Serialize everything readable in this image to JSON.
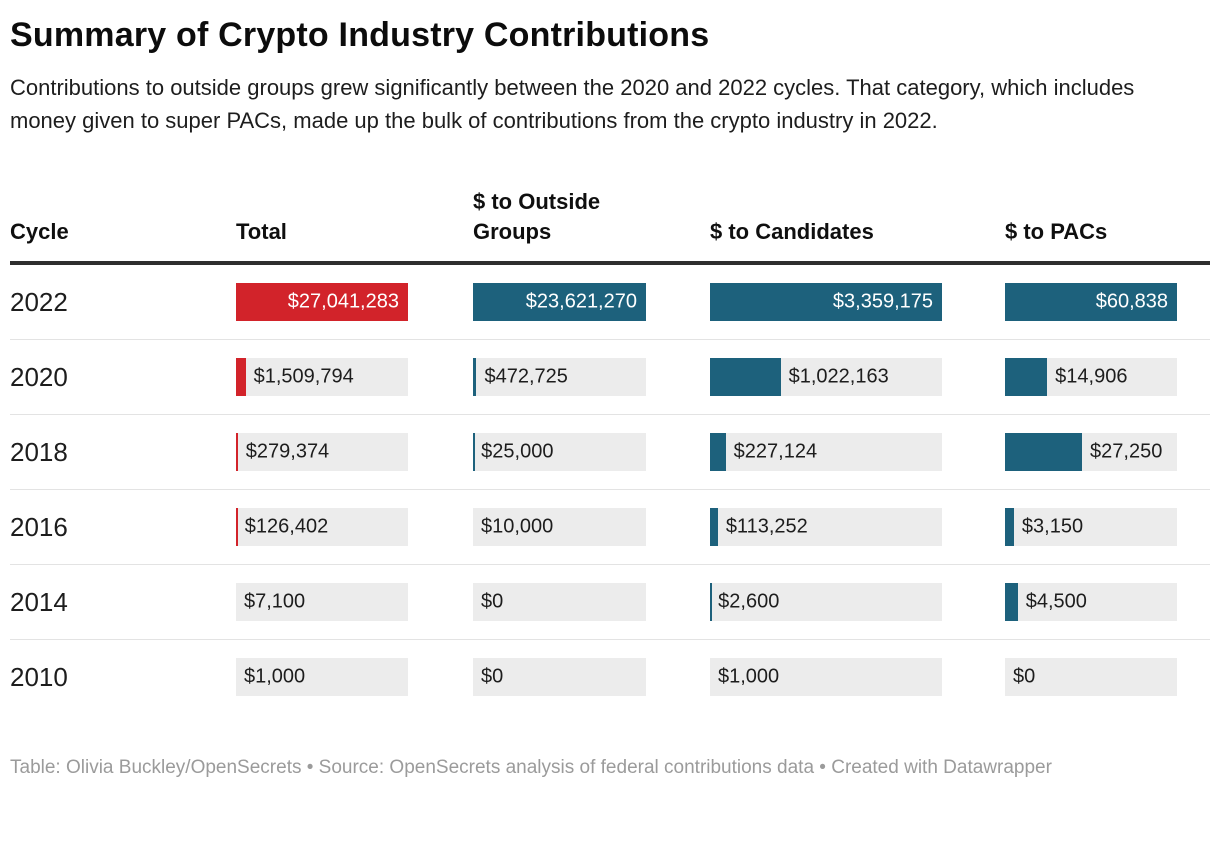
{
  "title": "Summary of Crypto Industry Contributions",
  "description": "Contributions to outside groups grew significantly between the 2020 and 2022 cycles. That category, which includes money given to super PACs, made up the bulk of contributions from the crypto industry in 2022.",
  "footer": "Table: Olivia Buckley/OpenSecrets • Source: OpenSecrets analysis of federal contributions data • Created with Datawrapper",
  "colors": {
    "total_bar": "#d2232a",
    "teal_bar": "#1d617c",
    "bar_track": "#ececec",
    "header_rule": "#2e2e2e",
    "row_divider": "#e3e3e3",
    "footer_text": "#9b9b9b",
    "label_on_bar": "#ffffff",
    "label_on_track": "#1d1d1d"
  },
  "table": {
    "columns": [
      {
        "label": "Cycle"
      },
      {
        "label": "Total",
        "color": "#d2232a",
        "max": 27041283
      },
      {
        "label": "$ to Outside Groups",
        "color": "#1d617c",
        "max": 23621270
      },
      {
        "label": "$ to Candidates",
        "color": "#1d617c",
        "max": 3359175
      },
      {
        "label": "$ to PACs",
        "color": "#1d617c",
        "max": 60838
      }
    ],
    "rows": [
      {
        "cycle": "2022",
        "cells": [
          {
            "label": "$27,041,283",
            "value": 27041283
          },
          {
            "label": "$23,621,270",
            "value": 23621270
          },
          {
            "label": "$3,359,175",
            "value": 3359175
          },
          {
            "label": "$60,838",
            "value": 60838
          }
        ]
      },
      {
        "cycle": "2020",
        "cells": [
          {
            "label": "$1,509,794",
            "value": 1509794
          },
          {
            "label": "$472,725",
            "value": 472725
          },
          {
            "label": "$1,022,163",
            "value": 1022163
          },
          {
            "label": "$14,906",
            "value": 14906
          }
        ]
      },
      {
        "cycle": "2018",
        "cells": [
          {
            "label": "$279,374",
            "value": 279374
          },
          {
            "label": "$25,000",
            "value": 25000
          },
          {
            "label": "$227,124",
            "value": 227124
          },
          {
            "label": "$27,250",
            "value": 27250
          }
        ]
      },
      {
        "cycle": "2016",
        "cells": [
          {
            "label": "$126,402",
            "value": 126402
          },
          {
            "label": "$10,000",
            "value": 10000
          },
          {
            "label": "$113,252",
            "value": 113252
          },
          {
            "label": "$3,150",
            "value": 3150
          }
        ]
      },
      {
        "cycle": "2014",
        "cells": [
          {
            "label": "$7,100",
            "value": 7100
          },
          {
            "label": "$0",
            "value": 0
          },
          {
            "label": "$2,600",
            "value": 2600
          },
          {
            "label": "$4,500",
            "value": 4500
          }
        ]
      },
      {
        "cycle": "2010",
        "cells": [
          {
            "label": "$1,000",
            "value": 1000
          },
          {
            "label": "$0",
            "value": 0
          },
          {
            "label": "$1,000",
            "value": 1000
          },
          {
            "label": "$0",
            "value": 0
          }
        ]
      }
    ]
  },
  "chart_data": {
    "type": "table",
    "title": "Summary of Crypto Industry Contributions",
    "subtitle": "Contributions to outside groups grew significantly between the 2020 and 2022 cycles. That category, which includes money given to super PACs, made up the bulk of contributions from the crypto industry in 2022.",
    "categories": [
      "2022",
      "2020",
      "2018",
      "2016",
      "2014",
      "2010"
    ],
    "series": [
      {
        "name": "Total",
        "color": "#d2232a",
        "values": [
          27041283,
          1509794,
          279374,
          126402,
          7100,
          1000
        ]
      },
      {
        "name": "$ to Outside Groups",
        "color": "#1d617c",
        "values": [
          23621270,
          472725,
          25000,
          10000,
          0,
          0
        ]
      },
      {
        "name": "$ to Candidates",
        "color": "#1d617c",
        "values": [
          3359175,
          1022163,
          227124,
          113252,
          2600,
          1000
        ]
      },
      {
        "name": "$ to PACs",
        "color": "#1d617c",
        "values": [
          60838,
          14906,
          27250,
          3150,
          4500,
          0
        ]
      }
    ],
    "bar_scaling": "bars scaled to each column's maximum value",
    "legend_position": "none",
    "grid": "off"
  }
}
